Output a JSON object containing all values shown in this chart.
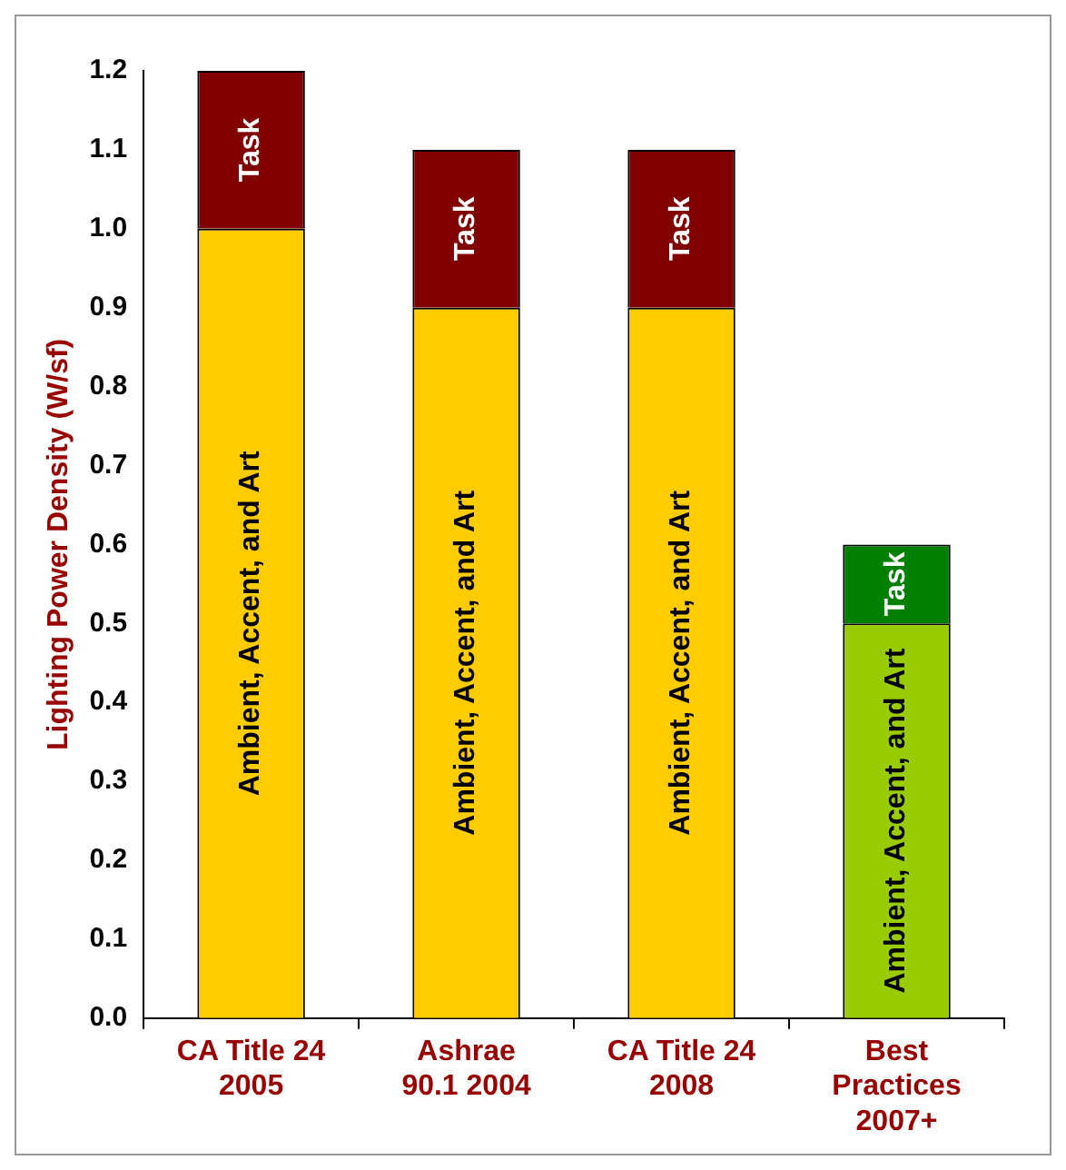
{
  "chart_data": {
    "type": "bar",
    "stacked": true,
    "ylabel": "Lighting Power Density (W/sf)",
    "categories": [
      "CA Title 24\n2005",
      "Ashrae\n90.1 2004",
      "CA Title 24\n2008",
      "Best\nPractices\n2007+"
    ],
    "series": [
      {
        "name": "Ambient, Accent, and Art",
        "colors": [
          "#ffcc00",
          "#ffcc00",
          "#ffcc00",
          "#99cc00"
        ],
        "values": [
          1.0,
          0.9,
          0.9,
          0.5
        ]
      },
      {
        "name": "Task",
        "colors": [
          "#800000",
          "#800000",
          "#800000",
          "#008000"
        ],
        "values": [
          0.2,
          0.2,
          0.2,
          0.1
        ]
      }
    ],
    "ylim": [
      0,
      1.2
    ],
    "yticks": [
      {
        "value": 0,
        "label": "0.0"
      },
      {
        "value": 0.1,
        "label": "0.1"
      },
      {
        "value": 0.2,
        "label": "0.2"
      },
      {
        "value": 0.3,
        "label": "0.3"
      },
      {
        "value": 0.4,
        "label": "0.4"
      },
      {
        "value": 0.5,
        "label": "0.5"
      },
      {
        "value": 0.6,
        "label": "0.6"
      },
      {
        "value": 0.7,
        "label": "0.7"
      },
      {
        "value": 0.8,
        "label": "0.8"
      },
      {
        "value": 0.9,
        "label": "0.9"
      },
      {
        "value": 1.0,
        "label": "1.0"
      },
      {
        "value": 1.1,
        "label": "1.1"
      },
      {
        "value": 1.2,
        "label": "1.2"
      }
    ],
    "grid": false,
    "legend": false
  }
}
